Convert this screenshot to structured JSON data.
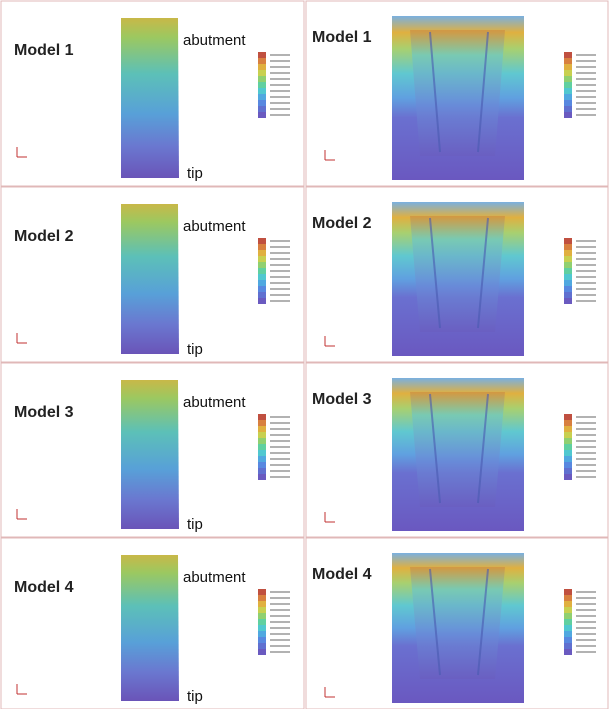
{
  "rows": [
    {
      "left": {
        "title": "Model 1",
        "top_label": "abutment",
        "bottom_label": "tip"
      },
      "right": {
        "title": "Model 1"
      }
    },
    {
      "left": {
        "title": "Model 2",
        "top_label": "abutment",
        "bottom_label": "tip"
      },
      "right": {
        "title": "Model 2"
      }
    },
    {
      "left": {
        "title": "Model 3",
        "top_label": "abutment",
        "bottom_label": "tip"
      },
      "right": {
        "title": "Model 3"
      }
    },
    {
      "left": {
        "title": "Model 4",
        "top_label": "abutment",
        "bottom_label": "tip"
      },
      "right": {
        "title": "Model 4"
      }
    }
  ]
}
